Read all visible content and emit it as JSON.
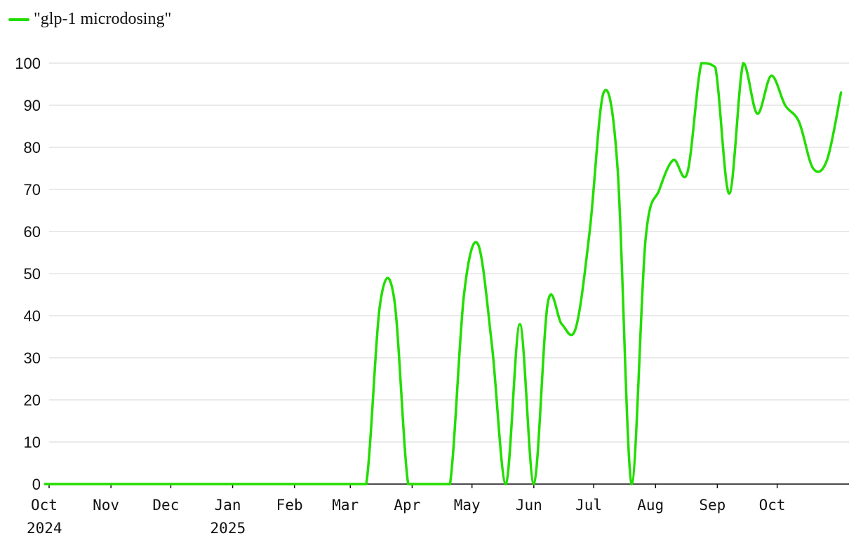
{
  "chart_data": {
    "type": "line",
    "title": "",
    "xlabel": "",
    "ylabel": "",
    "ylim": [
      0,
      100
    ],
    "yticks": [
      0,
      10,
      20,
      30,
      40,
      50,
      60,
      70,
      80,
      90,
      100
    ],
    "grid": "horizontal",
    "legend_position": "top-left",
    "colors": {
      "series": "#22dd00",
      "grid": "#e3e3e3",
      "axis": "#111111"
    },
    "x_ticks": [
      {
        "label": "Oct",
        "sub": "2024",
        "date": "2024-10-01"
      },
      {
        "label": "Nov",
        "sub": "",
        "date": "2024-11-01"
      },
      {
        "label": "Dec",
        "sub": "",
        "date": "2024-12-01"
      },
      {
        "label": "Jan",
        "sub": "2025",
        "date": "2025-01-01"
      },
      {
        "label": "Feb",
        "sub": "",
        "date": "2025-02-01"
      },
      {
        "label": "Mar",
        "sub": "",
        "date": "2025-03-01"
      },
      {
        "label": "Apr",
        "sub": "",
        "date": "2025-04-01"
      },
      {
        "label": "May",
        "sub": "",
        "date": "2025-05-01"
      },
      {
        "label": "Jun",
        "sub": "",
        "date": "2025-06-01"
      },
      {
        "label": "Jul",
        "sub": "",
        "date": "2025-07-01"
      },
      {
        "label": "Aug",
        "sub": "",
        "date": "2025-08-01"
      },
      {
        "label": "Sep",
        "sub": "",
        "date": "2025-09-01"
      },
      {
        "label": "Oct",
        "sub": "",
        "date": "2025-10-01"
      }
    ],
    "series": [
      {
        "name": "\"glp-1 microdosing\"",
        "x": [
          "2024-09-29",
          "2024-10-06",
          "2024-10-13",
          "2024-10-20",
          "2024-10-27",
          "2024-11-03",
          "2024-11-10",
          "2024-11-17",
          "2024-11-24",
          "2024-12-01",
          "2024-12-08",
          "2024-12-15",
          "2024-12-22",
          "2024-12-29",
          "2025-01-05",
          "2025-01-12",
          "2025-01-19",
          "2025-01-26",
          "2025-02-02",
          "2025-02-09",
          "2025-02-16",
          "2025-02-23",
          "2025-03-02",
          "2025-03-09",
          "2025-03-16",
          "2025-03-23",
          "2025-03-30",
          "2025-04-06",
          "2025-04-13",
          "2025-04-20",
          "2025-04-27",
          "2025-05-04",
          "2025-05-11",
          "2025-05-18",
          "2025-05-25",
          "2025-06-01",
          "2025-06-08",
          "2025-06-15",
          "2025-06-22",
          "2025-06-29",
          "2025-07-06",
          "2025-07-13",
          "2025-07-20",
          "2025-07-27",
          "2025-08-03",
          "2025-08-10",
          "2025-08-17",
          "2025-08-24",
          "2025-08-31",
          "2025-09-07",
          "2025-09-14",
          "2025-09-21",
          "2025-09-28",
          "2025-10-05",
          "2025-10-12",
          "2025-10-19",
          "2025-10-26"
        ],
        "values": [
          0,
          0,
          0,
          0,
          0,
          0,
          0,
          0,
          0,
          0,
          0,
          0,
          0,
          0,
          0,
          0,
          0,
          0,
          0,
          0,
          0,
          0,
          0,
          0,
          43,
          44,
          0,
          0,
          0,
          0,
          45,
          57,
          33,
          0,
          38,
          0,
          43,
          38,
          37,
          60,
          93,
          75,
          0,
          58,
          70,
          77,
          74,
          100,
          99,
          69,
          100,
          88,
          97,
          90,
          86,
          75,
          77
        ]
      }
    ],
    "extra_points": [
      {
        "x": "2025-11-02",
        "value": 93
      }
    ]
  }
}
